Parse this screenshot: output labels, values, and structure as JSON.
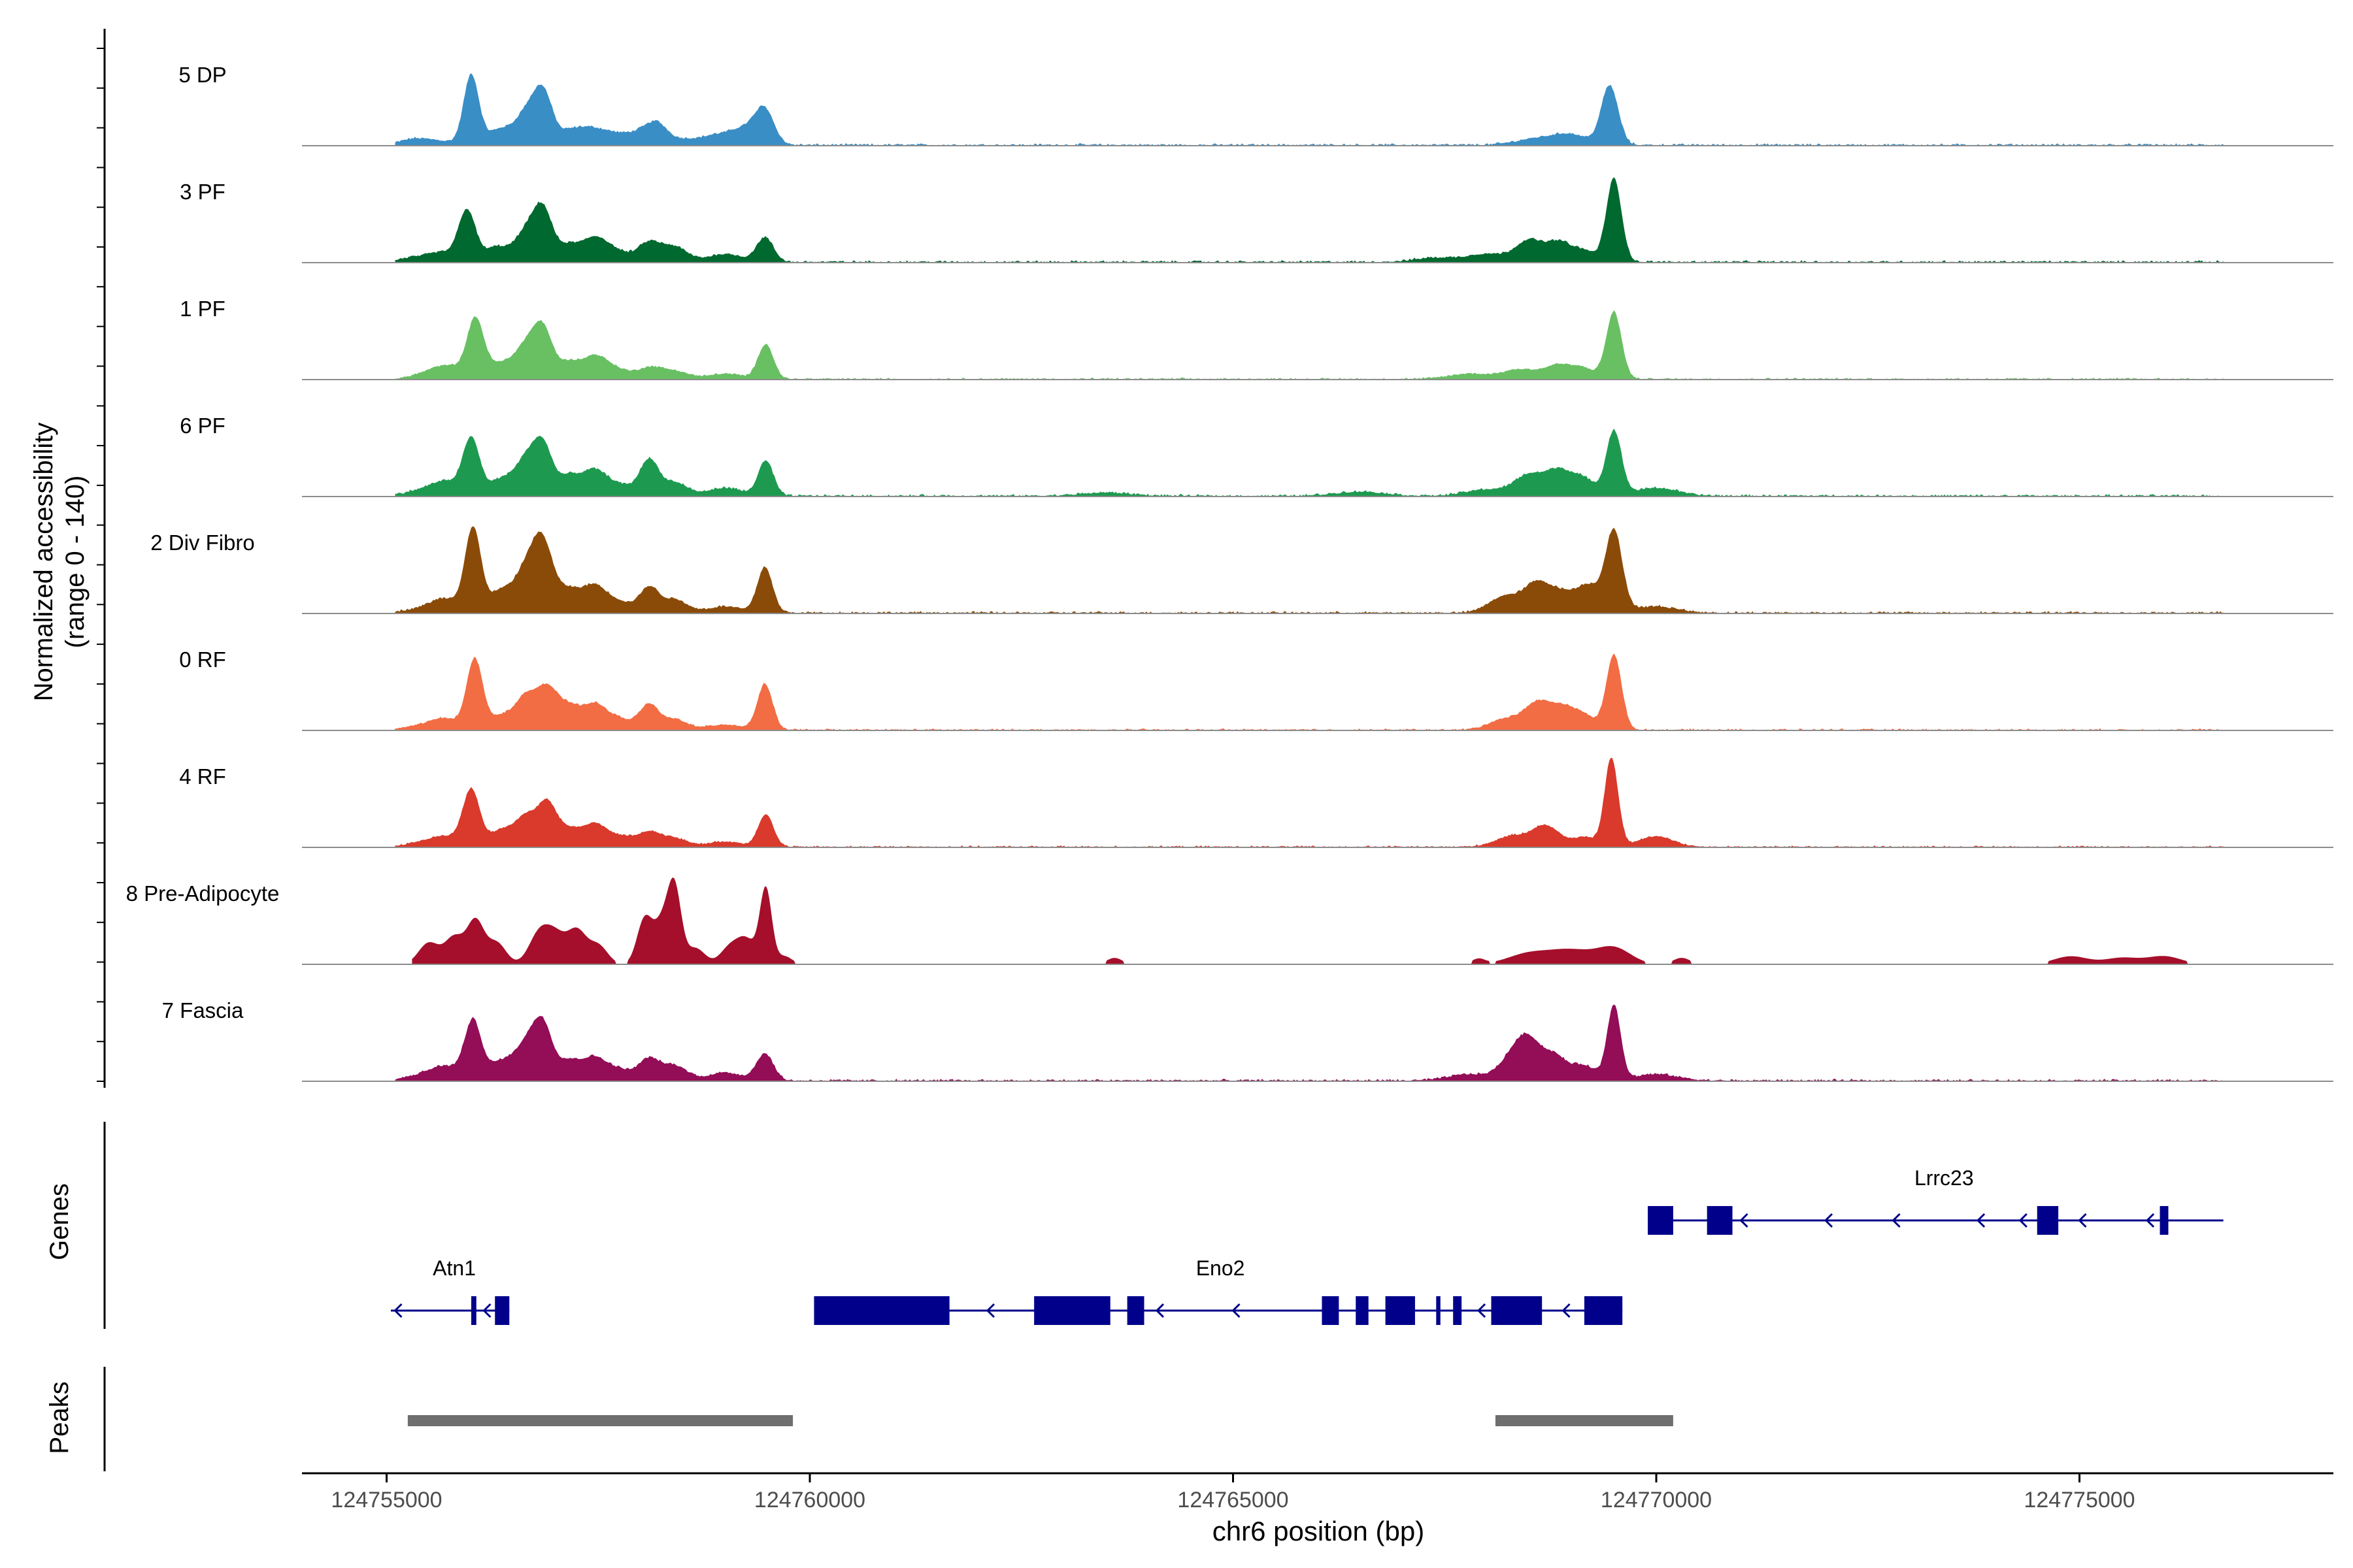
{
  "chart_data": {
    "type": "area",
    "title": "",
    "xlabel": "chr6 position (bp)",
    "ylabel_line1": "Normalized accessibility",
    "ylabel_line2": "(range 0 - 140)",
    "ylim": [
      0,
      140
    ],
    "xlim": [
      124754000,
      124778000
    ],
    "x_ticks": [
      124755000,
      124760000,
      124765000,
      124770000,
      124775000
    ],
    "x_tick_labels": [
      "124755000",
      "124760000",
      "124765000",
      "124770000",
      "124775000"
    ],
    "series": [
      {
        "name": "5 DP",
        "color": "#3a8ec6",
        "region": [
          124755100,
          124776700
        ],
        "peaks": [
          [
            124755300,
            10,
            150
          ],
          [
            124755600,
            8,
            180
          ],
          [
            124756000,
            130,
            90
          ],
          [
            124756350,
            30,
            150
          ],
          [
            124756650,
            55,
            120
          ],
          [
            124756850,
            95,
            110
          ],
          [
            124757150,
            20,
            130
          ],
          [
            124757400,
            28,
            160
          ],
          [
            124757700,
            18,
            160
          ],
          [
            124758000,
            20,
            140
          ],
          [
            124758200,
            35,
            120
          ],
          [
            124758500,
            10,
            160
          ],
          [
            124758900,
            18,
            180
          ],
          [
            124759250,
            30,
            160
          ],
          [
            124759470,
            60,
            110
          ],
          [
            124769450,
            110,
            100
          ],
          [
            124769000,
            18,
            200
          ],
          [
            124768600,
            12,
            250
          ]
        ],
        "noise": 5,
        "sparse": false
      },
      {
        "name": "3 PF",
        "color": "#00692f",
        "region": [
          124755100,
          124776700
        ],
        "peaks": [
          [
            124755300,
            8,
            150
          ],
          [
            124755650,
            18,
            160
          ],
          [
            124755950,
            95,
            100
          ],
          [
            124756300,
            28,
            140
          ],
          [
            124756650,
            55,
            130
          ],
          [
            124756850,
            90,
            110
          ],
          [
            124757150,
            30,
            130
          ],
          [
            124757450,
            40,
            140
          ],
          [
            124757700,
            20,
            160
          ],
          [
            124758100,
            35,
            130
          ],
          [
            124758400,
            28,
            150
          ],
          [
            124759000,
            15,
            200
          ],
          [
            124759470,
            45,
            100
          ],
          [
            124768000,
            15,
            220
          ],
          [
            124768500,
            40,
            160
          ],
          [
            124768850,
            35,
            140
          ],
          [
            124769150,
            20,
            140
          ],
          [
            124769500,
            155,
            90
          ],
          [
            124767400,
            8,
            250
          ]
        ],
        "noise": 5,
        "sparse": false
      },
      {
        "name": "1 PF",
        "color": "#69c063",
        "region": [
          124755100,
          124776700
        ],
        "peaks": [
          [
            124755500,
            12,
            180
          ],
          [
            124755750,
            20,
            160
          ],
          [
            124756050,
            110,
            100
          ],
          [
            124756350,
            28,
            140
          ],
          [
            124756650,
            60,
            130
          ],
          [
            124756850,
            85,
            110
          ],
          [
            124757150,
            30,
            130
          ],
          [
            124757450,
            38,
            140
          ],
          [
            124757700,
            18,
            160
          ],
          [
            124758100,
            20,
            140
          ],
          [
            124758400,
            15,
            160
          ],
          [
            124759000,
            10,
            200
          ],
          [
            124759480,
            65,
            90
          ],
          [
            124767800,
            10,
            250
          ],
          [
            124768400,
            18,
            200
          ],
          [
            124768850,
            25,
            160
          ],
          [
            124769150,
            18,
            140
          ],
          [
            124769500,
            125,
            90
          ]
        ],
        "noise": 4,
        "sparse": false
      },
      {
        "name": "6 PF",
        "color": "#1e9a50",
        "region": [
          124755100,
          124776700
        ],
        "peaks": [
          [
            124755400,
            10,
            180
          ],
          [
            124755700,
            25,
            160
          ],
          [
            124756000,
            105,
            100
          ],
          [
            124756350,
            30,
            140
          ],
          [
            124756650,
            65,
            130
          ],
          [
            124756850,
            85,
            110
          ],
          [
            124757150,
            35,
            130
          ],
          [
            124757450,
            45,
            140
          ],
          [
            124757750,
            20,
            160
          ],
          [
            124758100,
            65,
            110
          ],
          [
            124758400,
            25,
            150
          ],
          [
            124759000,
            15,
            200
          ],
          [
            124759480,
            65,
            90
          ],
          [
            124763500,
            6,
            300
          ],
          [
            124766500,
            8,
            300
          ],
          [
            124768000,
            12,
            250
          ],
          [
            124768500,
            38,
            170
          ],
          [
            124768850,
            45,
            150
          ],
          [
            124769150,
            30,
            140
          ],
          [
            124769500,
            120,
            90
          ],
          [
            124770000,
            15,
            250
          ]
        ],
        "noise": 5,
        "sparse": false
      },
      {
        "name": "2 Div Fibro",
        "color": "#8b4b08",
        "region": [
          124755100,
          124776700
        ],
        "peaks": [
          [
            124755400,
            8,
            180
          ],
          [
            124755700,
            25,
            160
          ],
          [
            124756020,
            155,
            95
          ],
          [
            124756350,
            40,
            140
          ],
          [
            124756650,
            75,
            130
          ],
          [
            124756850,
            120,
            120
          ],
          [
            124757150,
            40,
            130
          ],
          [
            124757450,
            48,
            140
          ],
          [
            124757750,
            20,
            160
          ],
          [
            124758100,
            45,
            110
          ],
          [
            124758400,
            25,
            150
          ],
          [
            124759000,
            12,
            200
          ],
          [
            124759470,
            85,
            90
          ],
          [
            124768200,
            30,
            180
          ],
          [
            124768600,
            55,
            160
          ],
          [
            124768900,
            30,
            140
          ],
          [
            124769200,
            50,
            140
          ],
          [
            124769500,
            150,
            100
          ],
          [
            124770000,
            12,
            250
          ]
        ],
        "noise": 5,
        "sparse": false
      },
      {
        "name": "0 RF",
        "color": "#f26d44",
        "region": [
          124755100,
          124776700
        ],
        "peaks": [
          [
            124755400,
            8,
            180
          ],
          [
            124755700,
            20,
            160
          ],
          [
            124756040,
            130,
            95
          ],
          [
            124756350,
            25,
            140
          ],
          [
            124756650,
            60,
            130
          ],
          [
            124756900,
            70,
            120
          ],
          [
            124757150,
            40,
            130
          ],
          [
            124757450,
            45,
            140
          ],
          [
            124757750,
            20,
            160
          ],
          [
            124758100,
            45,
            110
          ],
          [
            124758400,
            20,
            150
          ],
          [
            124759000,
            10,
            200
          ],
          [
            124759470,
            85,
            90
          ],
          [
            124768200,
            20,
            180
          ],
          [
            124768600,
            50,
            160
          ],
          [
            124768900,
            35,
            140
          ],
          [
            124769150,
            25,
            140
          ],
          [
            124769500,
            140,
            90
          ]
        ],
        "noise": 4,
        "sparse": false
      },
      {
        "name": "4 RF",
        "color": "#d93a2b",
        "region": [
          124755100,
          124776700
        ],
        "peaks": [
          [
            124755400,
            8,
            180
          ],
          [
            124755700,
            18,
            160
          ],
          [
            124756000,
            105,
            100
          ],
          [
            124756350,
            30,
            140
          ],
          [
            124756650,
            55,
            130
          ],
          [
            124756900,
            75,
            110
          ],
          [
            124757150,
            30,
            130
          ],
          [
            124757450,
            40,
            140
          ],
          [
            124757750,
            18,
            160
          ],
          [
            124758100,
            25,
            140
          ],
          [
            124758400,
            15,
            160
          ],
          [
            124759000,
            10,
            200
          ],
          [
            124759480,
            60,
            90
          ],
          [
            124768300,
            20,
            200
          ],
          [
            124768700,
            38,
            160
          ],
          [
            124769150,
            18,
            140
          ],
          [
            124769470,
            165,
            80
          ],
          [
            124770000,
            20,
            200
          ]
        ],
        "noise": 4,
        "sparse": false
      },
      {
        "name": "8 Pre-Adipocyte",
        "color": "#a50f2b",
        "region": [
          124755300,
          124776300
        ],
        "peaks": [
          [
            124755500,
            40,
            120
          ],
          [
            124755800,
            50,
            110
          ],
          [
            124756050,
            80,
            100
          ],
          [
            124756300,
            40,
            110
          ],
          [
            124756800,
            55,
            120
          ],
          [
            124757000,
            50,
            120
          ],
          [
            124757250,
            60,
            110
          ],
          [
            124757500,
            35,
            110
          ],
          [
            124758050,
            85,
            90
          ],
          [
            124758250,
            70,
            90
          ],
          [
            124758400,
            140,
            80
          ],
          [
            124758650,
            30,
            110
          ],
          [
            124759050,
            30,
            110
          ],
          [
            124759250,
            45,
            110
          ],
          [
            124759480,
            140,
            70
          ],
          [
            124759700,
            15,
            90
          ],
          [
            124763600,
            12,
            90
          ],
          [
            124767900,
            10,
            80
          ],
          [
            124768500,
            20,
            250
          ],
          [
            124769000,
            25,
            250
          ],
          [
            124769500,
            30,
            200
          ],
          [
            124770300,
            12,
            100
          ],
          [
            124774900,
            15,
            200
          ],
          [
            124775500,
            12,
            200
          ],
          [
            124776000,
            15,
            200
          ]
        ],
        "noise": 0,
        "sparse": true
      },
      {
        "name": "7 Fascia",
        "color": "#930d57",
        "region": [
          124755100,
          124776700
        ],
        "peaks": [
          [
            124755400,
            10,
            180
          ],
          [
            124755700,
            25,
            160
          ],
          [
            124756020,
            110,
            100
          ],
          [
            124756350,
            35,
            140
          ],
          [
            124756650,
            65,
            130
          ],
          [
            124756850,
            95,
            110
          ],
          [
            124757150,
            35,
            130
          ],
          [
            124757450,
            40,
            140
          ],
          [
            124757750,
            20,
            160
          ],
          [
            124758100,
            38,
            120
          ],
          [
            124758400,
            28,
            150
          ],
          [
            124759000,
            15,
            200
          ],
          [
            124759470,
            50,
            100
          ],
          [
            124767800,
            12,
            250
          ],
          [
            124768300,
            40,
            150
          ],
          [
            124768500,
            65,
            140
          ],
          [
            124768800,
            45,
            140
          ],
          [
            124769150,
            28,
            140
          ],
          [
            124769500,
            140,
            80
          ],
          [
            124770000,
            12,
            250
          ]
        ],
        "noise": 5,
        "sparse": false
      }
    ],
    "genes": {
      "label": "Genes",
      "color": "#00008b",
      "items": [
        {
          "name": "Atn1",
          "strand": "-",
          "start": 124755050,
          "end": 124756450,
          "row": 2,
          "label_at": 124755800,
          "exons": [
            [
              124756000,
              124756060
            ],
            [
              124756280,
              124756450
            ]
          ],
          "arrows": [
            124755100,
            124756150
          ]
        },
        {
          "name": "Eno2",
          "strand": "-",
          "start": 124760050,
          "end": 124769600,
          "row": 2,
          "label_at": 124764850,
          "exons": [
            [
              124760050,
              124761650
            ],
            [
              124762650,
              124763550
            ],
            [
              124763750,
              124763950
            ],
            [
              124766050,
              124766250
            ],
            [
              124766450,
              124766600
            ],
            [
              124766800,
              124767150
            ],
            [
              124767400,
              124767450
            ],
            [
              124767600,
              124767700
            ],
            [
              124768050,
              124768650
            ],
            [
              124769150,
              124769600
            ]
          ],
          "arrows": [
            124762100,
            124764100,
            124765000,
            124766100,
            124767900,
            124768900
          ]
        },
        {
          "name": "Lrrc23",
          "strand": "-",
          "start": 124769900,
          "end": 124776700,
          "row": 1,
          "label_at": 124773400,
          "exons": [
            [
              124769900,
              124770200
            ],
            [
              124770600,
              124770900
            ],
            [
              124774500,
              124774750
            ],
            [
              124775950,
              124776050
            ]
          ],
          "arrows": [
            124771000,
            124772000,
            124772800,
            124773800,
            124774300,
            124775000,
            124775800
          ]
        }
      ]
    },
    "peaks_track": {
      "label": "Peaks",
      "color": "#6e6e6e",
      "regions": [
        [
          124755250,
          124759800
        ],
        [
          124768100,
          124770200
        ]
      ]
    }
  }
}
